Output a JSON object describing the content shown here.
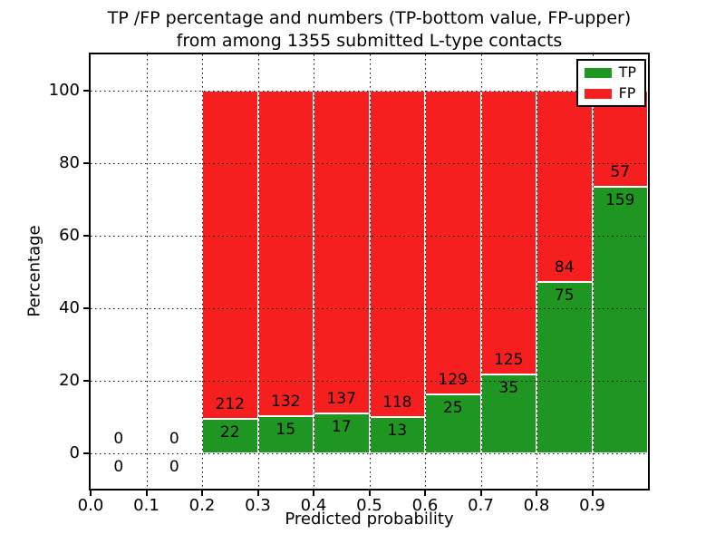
{
  "figure": {
    "title_line1": "TP /FP percentage and numbers (TP-bottom value, FP-upper)",
    "title_line2": "from among 1355 submitted L-type contacts",
    "xlabel": "Predicted probability",
    "ylabel": "Percentage",
    "legend": {
      "items": [
        {
          "label": "TP",
          "color": "#1f9621",
          "icon": "tp-color-swatch"
        },
        {
          "label": "FP",
          "color": "#f51f1f",
          "icon": "fp-color-swatch"
        }
      ]
    },
    "colors": {
      "tp": "#1f9621",
      "fp": "#f51f1f",
      "bar_edge": "#ffffff",
      "grid": "#000000",
      "frame": "#000000",
      "background": "#ffffff",
      "text": "#000000"
    }
  },
  "chart_data": {
    "type": "bar",
    "stacked": true,
    "title": "TP /FP percentage and numbers (TP-bottom value, FP-upper) from among 1355 submitted L-type contacts",
    "xlabel": "Predicted probability",
    "ylabel": "Percentage",
    "xlim": [
      0.0,
      1.0
    ],
    "ylim": [
      -10,
      110
    ],
    "x_ticks": [
      "0.0",
      "0.1",
      "0.2",
      "0.3",
      "0.4",
      "0.5",
      "0.6",
      "0.7",
      "0.8",
      "0.9"
    ],
    "y_ticks": [
      0,
      20,
      40,
      60,
      80,
      100
    ],
    "grid": true,
    "legend_position": "upper right",
    "total_contacts": 1355,
    "series_names": [
      "TP",
      "FP"
    ],
    "bins": [
      {
        "range": [
          0.0,
          0.1
        ],
        "tp": 0,
        "fp": 0,
        "tp_pct": null,
        "fp_pct": null
      },
      {
        "range": [
          0.1,
          0.2
        ],
        "tp": 0,
        "fp": 0,
        "tp_pct": null,
        "fp_pct": null
      },
      {
        "range": [
          0.2,
          0.3
        ],
        "tp": 22,
        "fp": 212,
        "tp_pct": 9.4,
        "fp_pct": 90.6
      },
      {
        "range": [
          0.3,
          0.4
        ],
        "tp": 15,
        "fp": 132,
        "tp_pct": 10.2,
        "fp_pct": 89.8
      },
      {
        "range": [
          0.4,
          0.5
        ],
        "tp": 17,
        "fp": 137,
        "tp_pct": 11.04,
        "fp_pct": 88.96
      },
      {
        "range": [
          0.5,
          0.6
        ],
        "tp": 13,
        "fp": 118,
        "tp_pct": 9.92,
        "fp_pct": 90.08
      },
      {
        "range": [
          0.6,
          0.7
        ],
        "tp": 25,
        "fp": 129,
        "tp_pct": 16.23,
        "fp_pct": 83.77
      },
      {
        "range": [
          0.7,
          0.8
        ],
        "tp": 35,
        "fp": 125,
        "tp_pct": 21.88,
        "fp_pct": 78.12
      },
      {
        "range": [
          0.8,
          0.9
        ],
        "tp": 75,
        "fp": 84,
        "tp_pct": 47.17,
        "fp_pct": 52.83
      },
      {
        "range": [
          0.9,
          1.0
        ],
        "tp": 159,
        "fp": 57,
        "tp_pct": 73.61,
        "fp_pct": 26.39
      }
    ]
  }
}
